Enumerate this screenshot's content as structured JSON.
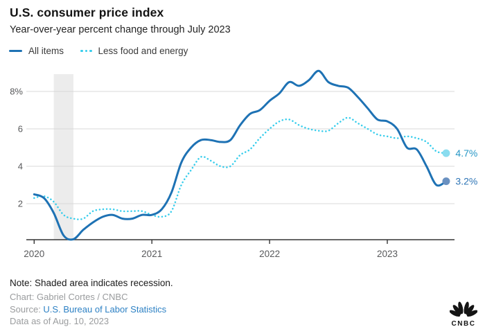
{
  "header": {
    "title": "U.S. consumer price index",
    "subtitle": "Year-over-year percent change through July 2023"
  },
  "legend": [
    {
      "label": "All items",
      "color": "#1e72b4",
      "style": "solid"
    },
    {
      "label": "Less food and energy",
      "color": "#36cdec",
      "style": "dotted"
    }
  ],
  "chart_data": {
    "type": "line",
    "title": "U.S. consumer price index",
    "subtitle": "Year-over-year percent change through July 2023",
    "xlabel": "",
    "ylabel": "Year-over-year percent change",
    "grid": true,
    "legend_position": "top",
    "ylim": [
      0,
      9.3
    ],
    "x": [
      "2020-01",
      "2020-02",
      "2020-03",
      "2020-04",
      "2020-05",
      "2020-06",
      "2020-07",
      "2020-08",
      "2020-09",
      "2020-10",
      "2020-11",
      "2020-12",
      "2021-01",
      "2021-02",
      "2021-03",
      "2021-04",
      "2021-05",
      "2021-06",
      "2021-07",
      "2021-08",
      "2021-09",
      "2021-10",
      "2021-11",
      "2021-12",
      "2022-01",
      "2022-02",
      "2022-03",
      "2022-04",
      "2022-05",
      "2022-06",
      "2022-07",
      "2022-08",
      "2022-09",
      "2022-10",
      "2022-11",
      "2022-12",
      "2023-01",
      "2023-02",
      "2023-03",
      "2023-04",
      "2023-05",
      "2023-06",
      "2023-07"
    ],
    "series": [
      {
        "name": "Less food and energy",
        "style": "dotted",
        "color": "#36cdec",
        "end_label": "4.7%",
        "end_label_color": "#2697c6",
        "end_dot_color": "#8adcef",
        "values": [
          2.3,
          2.4,
          2.1,
          1.4,
          1.2,
          1.2,
          1.6,
          1.7,
          1.7,
          1.6,
          1.6,
          1.6,
          1.4,
          1.3,
          1.6,
          3.0,
          3.8,
          4.5,
          4.3,
          4.0,
          4.0,
          4.6,
          4.9,
          5.5,
          6.0,
          6.4,
          6.5,
          6.2,
          6.0,
          5.9,
          5.9,
          6.3,
          6.6,
          6.3,
          6.0,
          5.7,
          5.6,
          5.5,
          5.6,
          5.5,
          5.3,
          4.8,
          4.7
        ]
      },
      {
        "name": "All items",
        "style": "solid",
        "color": "#1e72b4",
        "end_label": "3.2%",
        "end_label_color": "#2e75b6",
        "end_dot_color": "#6a91c1",
        "values": [
          2.5,
          2.3,
          1.5,
          0.3,
          0.1,
          0.6,
          1.0,
          1.3,
          1.4,
          1.2,
          1.2,
          1.4,
          1.4,
          1.7,
          2.6,
          4.2,
          5.0,
          5.4,
          5.4,
          5.3,
          5.4,
          6.2,
          6.8,
          7.0,
          7.5,
          7.9,
          8.5,
          8.3,
          8.6,
          9.1,
          8.5,
          8.3,
          8.2,
          7.7,
          7.1,
          6.5,
          6.4,
          6.0,
          5.0,
          4.9,
          4.0,
          3.0,
          3.2
        ]
      }
    ],
    "yticks": [
      {
        "value": 2,
        "label": "2"
      },
      {
        "value": 4,
        "label": "4"
      },
      {
        "value": 6,
        "label": "6"
      },
      {
        "value": 8,
        "label": "8%"
      }
    ],
    "xticks": [
      {
        "month_index": 0,
        "label": "2020"
      },
      {
        "month_index": 12,
        "label": "2021"
      },
      {
        "month_index": 24,
        "label": "2022"
      },
      {
        "month_index": 36,
        "label": "2023"
      }
    ],
    "recession_band": {
      "from_index": 2,
      "to_index": 4,
      "color": "#ececec",
      "meaning": "recession"
    },
    "colors": {
      "grid": "#d8d8d8",
      "axis": "#333333",
      "tick_text": "#58595b"
    }
  },
  "footer": {
    "note": "Note: Shaded area indicates recession.",
    "chart_credit": "Chart: Gabriel Cortes / CNBC",
    "source_label": "Source: ",
    "source_link": "U.S. Bureau of Labor Statistics",
    "data_as_of": "Data as of Aug. 10, 2023",
    "logo": "CNBC"
  }
}
